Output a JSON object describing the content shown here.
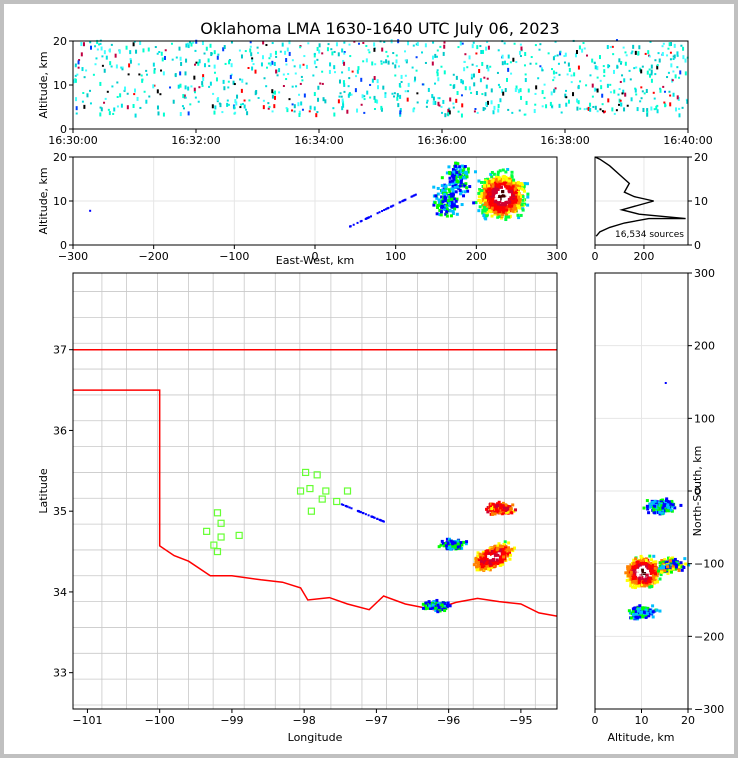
{
  "title": "Oklahoma LMA 1630-1640 UTC July 06, 2023",
  "colors": {
    "state_border": "#ff0000",
    "county_lines": "#c8c8c8",
    "stations": "#66ff33",
    "background": "#ffffff",
    "frame": "#c0c0c0"
  },
  "source_count_label": "16,534 sources",
  "chart_data": [
    {
      "id": "time-height",
      "type": "scatter",
      "xlabel": "",
      "ylabel": "Altitude, km",
      "x_ticks": [
        "16:30:00",
        "16:32:00",
        "16:34:00",
        "16:36:00",
        "16:38:00",
        "16:40:00"
      ],
      "xlim": [
        "16:30:00",
        "16:40:00"
      ],
      "y_ticks": [
        0,
        10,
        20
      ],
      "ylim": [
        0,
        20
      ],
      "description_of_points": "VHF sources colored by time (cyan/red), spread across 5-20 km altitude",
      "altitude_band_km": [
        3,
        20
      ]
    },
    {
      "id": "ew-altitude",
      "type": "heatmap",
      "xlabel": "East-West, km",
      "ylabel": "Altitude, km",
      "x_ticks": [
        -300,
        -200,
        -100,
        0,
        100,
        200,
        300
      ],
      "xlim": [
        -300,
        300
      ],
      "y_ticks": [
        0,
        10,
        20
      ],
      "ylim": [
        0,
        20
      ],
      "grid": true,
      "cores": [
        {
          "x": 230,
          "y": 11,
          "intensity": "high"
        },
        {
          "x": 175,
          "y": 15,
          "intensity": "medium"
        },
        {
          "x": 160,
          "y": 10,
          "intensity": "low"
        }
      ]
    },
    {
      "id": "altitude-histogram",
      "type": "line",
      "xlabel": "",
      "ylabel": "",
      "x_ticks": [
        0,
        200
      ],
      "xlim": [
        0,
        380
      ],
      "y_ticks": [
        0,
        10,
        20
      ],
      "ylim": [
        0,
        20
      ],
      "x": [
        5,
        20,
        60,
        120,
        220,
        370,
        180,
        110,
        240,
        160,
        120,
        140,
        100,
        60,
        20,
        0
      ],
      "y": [
        2,
        3,
        4,
        5,
        6,
        6,
        7,
        8,
        10,
        11,
        12,
        14,
        16,
        18,
        19.5,
        20
      ]
    },
    {
      "id": "plan-view",
      "type": "heatmap",
      "xlabel": "Longitude",
      "ylabel": "Latitude",
      "x_ticks": [
        -101,
        -100,
        -99,
        -98,
        -97,
        -96,
        -95
      ],
      "xlim": [
        -101.2,
        -94.5
      ],
      "y_ticks": [
        33,
        34,
        35,
        36,
        37
      ],
      "ylim": [
        32.55,
        37.95
      ],
      "grid": false,
      "stations": [
        {
          "lon": -99.2,
          "lat": 34.98
        },
        {
          "lon": -99.15,
          "lat": 34.85
        },
        {
          "lon": -99.35,
          "lat": 34.75
        },
        {
          "lon": -99.15,
          "lat": 34.68
        },
        {
          "lon": -99.25,
          "lat": 34.58
        },
        {
          "lon": -99.2,
          "lat": 34.5
        },
        {
          "lon": -98.9,
          "lat": 34.7
        },
        {
          "lon": -97.98,
          "lat": 35.48
        },
        {
          "lon": -97.82,
          "lat": 35.45
        },
        {
          "lon": -98.05,
          "lat": 35.25
        },
        {
          "lon": -97.92,
          "lat": 35.28
        },
        {
          "lon": -97.7,
          "lat": 35.25
        },
        {
          "lon": -97.4,
          "lat": 35.25
        },
        {
          "lon": -97.75,
          "lat": 35.15
        },
        {
          "lon": -97.55,
          "lat": 35.12
        },
        {
          "lon": -97.9,
          "lat": 35.0
        }
      ],
      "cores": [
        {
          "lon": -95.4,
          "lat": 34.45,
          "intensity": "high"
        },
        {
          "lon": -95.3,
          "lat": 35.05,
          "intensity": "medium"
        },
        {
          "lon": -95.95,
          "lat": 34.6,
          "intensity": "low"
        },
        {
          "lon": -96.2,
          "lat": 33.85,
          "intensity": "low"
        }
      ]
    },
    {
      "id": "altitude-ns",
      "type": "heatmap",
      "xlabel": "Altitude, km",
      "ylabel": "North-South, km",
      "x_ticks": [
        0,
        10,
        20
      ],
      "xlim": [
        0,
        20
      ],
      "y_ticks": [
        -300,
        -200,
        -100,
        0,
        100,
        200,
        300
      ],
      "ylim": [
        -300,
        300
      ],
      "grid": true,
      "cores": [
        {
          "x": 10,
          "y": -110,
          "intensity": "high"
        },
        {
          "x": 16,
          "y": -100,
          "intensity": "medium"
        },
        {
          "x": 14,
          "y": -20,
          "intensity": "low"
        },
        {
          "x": 10,
          "y": -165,
          "intensity": "low"
        }
      ]
    }
  ]
}
